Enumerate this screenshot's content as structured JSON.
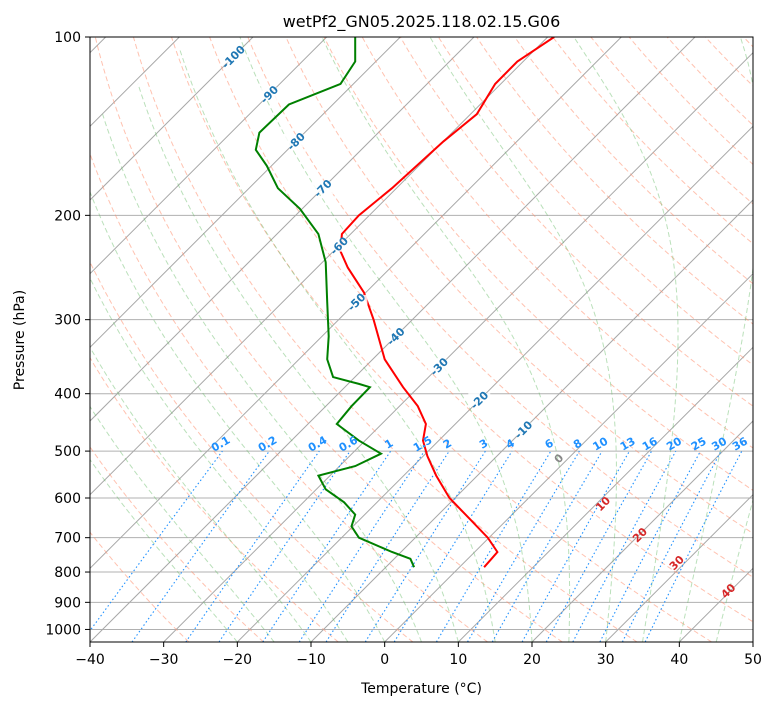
{
  "chart_data": {
    "type": "line",
    "title": "wetPf2_GN05.2025.118.02.15.G06",
    "xlabel": "Temperature (°C)",
    "ylabel": "Pressure (hPa)",
    "xlim": [
      -40,
      50
    ],
    "ylim": [
      1050,
      100
    ],
    "y_scale": "log",
    "grid": true,
    "x_ticks": [
      "−40",
      "−30",
      "−20",
      "−10",
      "0",
      "10",
      "20",
      "30",
      "40",
      "50"
    ],
    "y_ticks": [
      "100",
      "200",
      "300",
      "400",
      "500",
      "600",
      "700",
      "800",
      "900",
      "1000"
    ],
    "isotherm_labels": [
      "-100",
      "-90",
      "-80",
      "-70",
      "-60",
      "-50",
      "-40",
      "-30",
      "-20",
      "-10"
    ],
    "mixing_ratio_labels": [
      "0.1",
      "0.2",
      "0.4",
      "0.6",
      "1",
      "1.5",
      "2",
      "3",
      "4",
      "6",
      "8",
      "10",
      "13",
      "16",
      "20",
      "25",
      "30",
      "36"
    ],
    "moist_adiabat_labels": [
      "0",
      "10",
      "20",
      "30",
      "40"
    ],
    "colors": {
      "temperature": "#ff0000",
      "dewpoint": "#008000",
      "isotherm_label": "#1f77b4",
      "mixing_ratio": "#1e90ff",
      "moist_label": "#d62728",
      "dry_adiabat": "#ff9070",
      "moist_adiabat": "#66bb66",
      "skewed_isotherm": "#888888"
    },
    "series": [
      {
        "key": "temperature",
        "x": [
          13.5,
          14.5,
          15.3,
          14.0,
          11.5,
          8.8,
          7.0,
          5.8,
          5.2,
          5.6,
          4.5,
          2.5,
          0.0,
          -1.5,
          -2.8,
          -5.0,
          -6.0,
          -5.8,
          -3.5,
          1.0,
          8.0,
          12.5,
          15.0,
          18.0,
          23.0
        ],
        "y": [
          785,
          760,
          740,
          700,
          650,
          600,
          550,
          510,
          480,
          450,
          420,
          390,
          350,
          300,
          270,
          245,
          230,
          215,
          200,
          180,
          150,
          135,
          120,
          110,
          100
        ]
      },
      {
        "key": "dewpoint",
        "x": [
          4.0,
          3.5,
          1.0,
          -3.5,
          -4.5,
          -4.0,
          -5.5,
          -8.0,
          -9.0,
          -4.0,
          -0.5,
          -3.5,
          -6.5,
          -4.5,
          -2.0,
          -3.5,
          -7.0,
          -7.8,
          -7.6,
          -7.8,
          -8.0,
          -9.0,
          -11.5,
          -14.5,
          -16.0,
          -17.5,
          -17.0,
          -13.0,
          -6.0,
          -4.0,
          -4.0
        ],
        "y": [
          785,
          760,
          740,
          700,
          670,
          640,
          610,
          580,
          550,
          530,
          505,
          480,
          450,
          420,
          390,
          385,
          375,
          350,
          320,
          280,
          240,
          215,
          195,
          180,
          165,
          155,
          145,
          130,
          120,
          110,
          100
        ]
      }
    ]
  }
}
